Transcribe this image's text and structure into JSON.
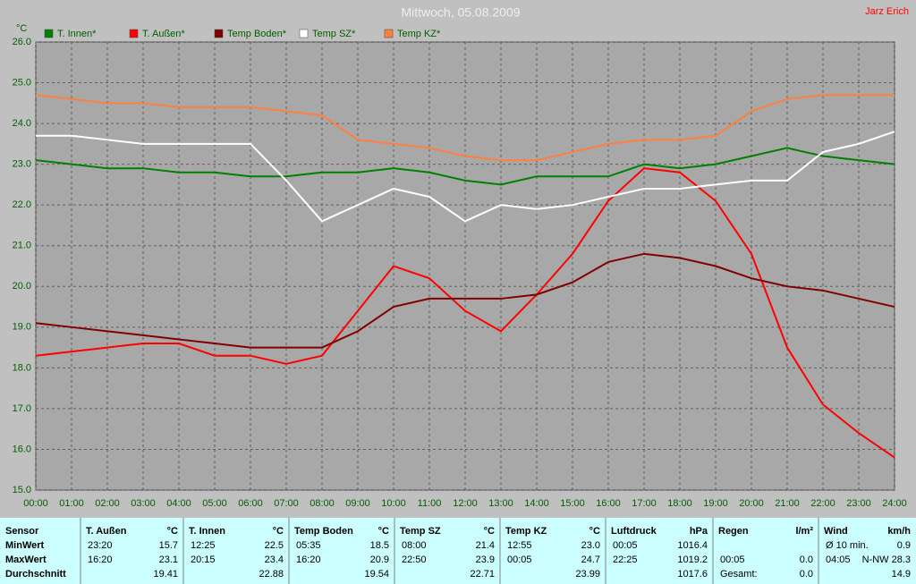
{
  "chart_data": {
    "type": "line",
    "title": "Mittwoch, 05.08.2009",
    "author": "Jarz Erich",
    "y_label": "°C",
    "x": [
      0,
      1,
      2,
      3,
      4,
      5,
      6,
      7,
      8,
      9,
      10,
      11,
      12,
      13,
      14,
      15,
      16,
      17,
      18,
      19,
      20,
      21,
      22,
      23,
      24
    ],
    "xlim": [
      0,
      24
    ],
    "xticks": [
      {
        "value": 0,
        "label": "00:00"
      },
      {
        "value": 1,
        "label": "01:00"
      },
      {
        "value": 2,
        "label": "02:00"
      },
      {
        "value": 3,
        "label": "03:00"
      },
      {
        "value": 4,
        "label": "04:00"
      },
      {
        "value": 5,
        "label": "05:00"
      },
      {
        "value": 6,
        "label": "06:00"
      },
      {
        "value": 7,
        "label": "07:00"
      },
      {
        "value": 8,
        "label": "08:00"
      },
      {
        "value": 9,
        "label": "09:00"
      },
      {
        "value": 10,
        "label": "10:00"
      },
      {
        "value": 11,
        "label": "11:00"
      },
      {
        "value": 12,
        "label": "12:00"
      },
      {
        "value": 13,
        "label": "13:00"
      },
      {
        "value": 14,
        "label": "14:00"
      },
      {
        "value": 15,
        "label": "15:00"
      },
      {
        "value": 16,
        "label": "16:00"
      },
      {
        "value": 17,
        "label": "17:00"
      },
      {
        "value": 18,
        "label": "18:00"
      },
      {
        "value": 19,
        "label": "19:00"
      },
      {
        "value": 20,
        "label": "20:00"
      },
      {
        "value": 21,
        "label": "21:00"
      },
      {
        "value": 22,
        "label": "22:00"
      },
      {
        "value": 23,
        "label": "23:00"
      },
      {
        "value": 24,
        "label": "24:00"
      }
    ],
    "ylim": [
      15,
      26
    ],
    "yticks": [
      {
        "value": 15,
        "label": "15.0"
      },
      {
        "value": 16,
        "label": "16.0"
      },
      {
        "value": 17,
        "label": "17.0"
      },
      {
        "value": 18,
        "label": "18.0"
      },
      {
        "value": 19,
        "label": "19.0"
      },
      {
        "value": 20,
        "label": "20.0"
      },
      {
        "value": 21,
        "label": "21.0"
      },
      {
        "value": 22,
        "label": "22.0"
      },
      {
        "value": 23,
        "label": "23.0"
      },
      {
        "value": 24,
        "label": "24.0"
      },
      {
        "value": 25,
        "label": "25.0"
      },
      {
        "value": 26,
        "label": "26.0"
      }
    ],
    "grid": true,
    "series": [
      {
        "name": "T. Innen*",
        "color": "#008000",
        "values": [
          23.1,
          23.0,
          22.9,
          22.9,
          22.8,
          22.8,
          22.7,
          22.7,
          22.8,
          22.8,
          22.9,
          22.8,
          22.6,
          22.5,
          22.7,
          22.7,
          22.7,
          23.0,
          22.9,
          23.0,
          23.2,
          23.4,
          23.2,
          23.1,
          23.0
        ]
      },
      {
        "name": "T. Außen*",
        "color": "#ff0000",
        "values": [
          18.3,
          18.4,
          18.5,
          18.6,
          18.6,
          18.3,
          18.3,
          18.1,
          18.3,
          19.4,
          20.5,
          20.2,
          19.4,
          18.9,
          19.8,
          20.8,
          22.1,
          22.9,
          22.8,
          22.1,
          20.8,
          18.5,
          17.1,
          16.4,
          15.8
        ]
      },
      {
        "name": "Temp Boden*",
        "color": "#800000",
        "values": [
          19.1,
          19.0,
          18.9,
          18.8,
          18.7,
          18.6,
          18.5,
          18.5,
          18.5,
          18.9,
          19.5,
          19.7,
          19.7,
          19.7,
          19.8,
          20.1,
          20.6,
          20.8,
          20.7,
          20.5,
          20.2,
          20.0,
          19.9,
          19.7,
          19.5
        ]
      },
      {
        "name": "Temp SZ*",
        "color": "#ffffff",
        "values": [
          23.7,
          23.7,
          23.6,
          23.5,
          23.5,
          23.5,
          23.5,
          22.6,
          21.6,
          22.0,
          22.4,
          22.2,
          21.6,
          22.0,
          21.9,
          22.0,
          22.2,
          22.4,
          22.4,
          22.5,
          22.6,
          22.6,
          23.3,
          23.5,
          23.8
        ]
      },
      {
        "name": "Temp KZ*",
        "color": "#ff8040",
        "values": [
          24.7,
          24.6,
          24.5,
          24.5,
          24.4,
          24.4,
          24.4,
          24.3,
          24.2,
          23.6,
          23.5,
          23.4,
          23.2,
          23.1,
          23.1,
          23.3,
          23.5,
          23.6,
          23.6,
          23.7,
          24.3,
          24.6,
          24.7,
          24.7,
          24.7
        ]
      }
    ]
  },
  "table": {
    "row_labels": [
      "Sensor",
      "MinWert",
      "MaxWert",
      "Durchschnitt"
    ],
    "groups": [
      {
        "name": "T. Außen",
        "unit": "°C",
        "rows": [
          [
            "23:20",
            "15.7"
          ],
          [
            "16:20",
            "23.1"
          ],
          [
            "19.41"
          ]
        ]
      },
      {
        "name": "T. Innen",
        "unit": "°C",
        "rows": [
          [
            "12:25",
            "22.5"
          ],
          [
            "20:15",
            "23.4"
          ],
          [
            "22.88"
          ]
        ]
      },
      {
        "name": "Temp Boden",
        "unit": "°C",
        "rows": [
          [
            "05:35",
            "18.5"
          ],
          [
            "16:20",
            "20.9"
          ],
          [
            "19.54"
          ]
        ]
      },
      {
        "name": "Temp SZ",
        "unit": "°C",
        "rows": [
          [
            "08:00",
            "21.4"
          ],
          [
            "22:50",
            "23.9"
          ],
          [
            "22.71"
          ]
        ]
      },
      {
        "name": "Temp KZ",
        "unit": "°C",
        "rows": [
          [
            "12:55",
            "23.0"
          ],
          [
            "00:05",
            "24.7"
          ],
          [
            "23.99"
          ]
        ]
      },
      {
        "name": "Luftdruck",
        "unit": "hPa",
        "rows": [
          [
            "00:05",
            "1016.4"
          ],
          [
            "22:25",
            "1019.2"
          ],
          [
            "1017.6"
          ]
        ]
      },
      {
        "name": "Regen",
        "unit": "l/m²",
        "rows": [
          [],
          [
            "00:05",
            "0.0"
          ],
          [
            "Gesamt:",
            "0.0"
          ]
        ]
      },
      {
        "name": "Wind",
        "unit": "km/h",
        "rows": [
          [
            "Ø 10 min.",
            "0.9"
          ],
          [
            "04:05",
            "N-NW 28.3"
          ],
          [
            "14.9"
          ]
        ]
      }
    ]
  }
}
